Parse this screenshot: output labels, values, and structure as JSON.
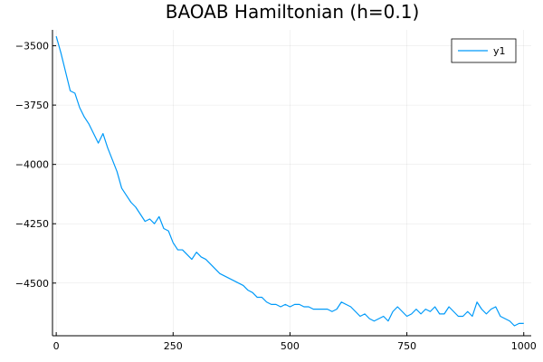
{
  "chart_data": {
    "type": "line",
    "title": "BAOAB Hamiltonian (h=0.1)",
    "xlabel": "",
    "ylabel": "",
    "xlim": [
      -8,
      1016
    ],
    "ylim": [
      -4722,
      -3433
    ],
    "x_ticks": [
      0,
      250,
      500,
      750,
      1000
    ],
    "x_tick_labels": [
      "0",
      "250",
      "500",
      "750",
      "1000"
    ],
    "y_ticks": [
      -3500,
      -3750,
      -4000,
      -4250,
      -4500
    ],
    "y_tick_labels": [
      "−3500",
      "−3750",
      "−4000",
      "−4250",
      "−4500"
    ],
    "grid": true,
    "legend_position": "top-right",
    "series": [
      {
        "name": "y1",
        "color": "#009af9",
        "x": [
          0,
          10,
          20,
          30,
          40,
          50,
          60,
          70,
          80,
          90,
          100,
          110,
          120,
          130,
          140,
          150,
          160,
          170,
          180,
          190,
          200,
          210,
          220,
          230,
          240,
          250,
          260,
          270,
          280,
          290,
          300,
          310,
          320,
          330,
          340,
          350,
          360,
          370,
          380,
          390,
          400,
          410,
          420,
          430,
          440,
          450,
          460,
          470,
          480,
          490,
          500,
          510,
          520,
          530,
          540,
          550,
          560,
          570,
          580,
          590,
          600,
          610,
          620,
          630,
          640,
          650,
          660,
          670,
          680,
          690,
          700,
          710,
          720,
          730,
          740,
          750,
          760,
          770,
          780,
          790,
          800,
          810,
          820,
          830,
          840,
          850,
          860,
          870,
          880,
          890,
          900,
          910,
          920,
          930,
          940,
          950,
          960,
          970,
          980,
          990,
          1000
        ],
        "y": [
          -3460,
          -3530,
          -3610,
          -3690,
          -3700,
          -3760,
          -3800,
          -3830,
          -3870,
          -3910,
          -3870,
          -3930,
          -3980,
          -4030,
          -4100,
          -4130,
          -4160,
          -4180,
          -4210,
          -4240,
          -4230,
          -4250,
          -4220,
          -4270,
          -4280,
          -4330,
          -4360,
          -4360,
          -4380,
          -4400,
          -4370,
          -4390,
          -4400,
          -4420,
          -4440,
          -4460,
          -4470,
          -4480,
          -4490,
          -4500,
          -4510,
          -4530,
          -4540,
          -4560,
          -4560,
          -4580,
          -4590,
          -4590,
          -4600,
          -4590,
          -4600,
          -4590,
          -4590,
          -4600,
          -4600,
          -4610,
          -4610,
          -4610,
          -4610,
          -4620,
          -4610,
          -4580,
          -4590,
          -4600,
          -4620,
          -4640,
          -4630,
          -4650,
          -4660,
          -4650,
          -4640,
          -4660,
          -4620,
          -4600,
          -4620,
          -4640,
          -4630,
          -4610,
          -4630,
          -4610,
          -4620,
          -4600,
          -4630,
          -4630,
          -4600,
          -4620,
          -4640,
          -4640,
          -4620,
          -4640,
          -4580,
          -4610,
          -4630,
          -4610,
          -4600,
          -4640,
          -4650,
          -4660,
          -4680,
          -4670,
          -4670
        ]
      }
    ]
  }
}
